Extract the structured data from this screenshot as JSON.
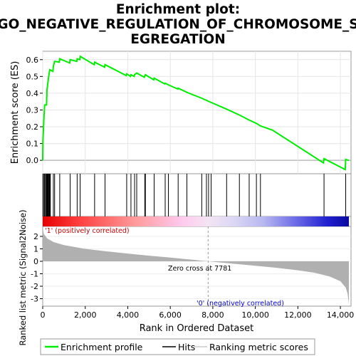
{
  "chart_data": {
    "type": "line",
    "title_lines": [
      "Enrichment plot:",
      "GO_NEGATIVE_REGULATION_OF_CHROMOSOME_S",
      "EGREGATION"
    ],
    "xlabel": "Rank in Ordered Dataset",
    "ylabel_top": "Enrichment score (ES)",
    "ylabel_bottom": "Ranked list metric (Signal2Noise)",
    "xlim": [
      0,
      14500
    ],
    "x_ticks": [
      0,
      2000,
      4000,
      6000,
      8000,
      10000,
      12000,
      14000
    ],
    "x_tick_labels": [
      "0",
      "2,000",
      "4,000",
      "6,000",
      "8,000",
      "10,000",
      "12,000",
      "14,000"
    ],
    "es_ylim": [
      -0.08,
      0.65
    ],
    "es_ticks": [
      0.0,
      0.1,
      0.2,
      0.3,
      0.4,
      0.5,
      0.6
    ],
    "es_tick_labels": [
      "0.0",
      "0.1",
      "0.2",
      "0.3",
      "0.4",
      "0.5",
      "0.6"
    ],
    "metric_ylim": [
      -3.6,
      2.8
    ],
    "metric_ticks": [
      2,
      1,
      0,
      -1,
      -2,
      -3
    ],
    "metric_tick_labels": [
      "2",
      "1",
      "0",
      "-1",
      "-2",
      "-3"
    ],
    "zero_cross": 7781,
    "zero_cross_label": "Zero cross at 7781",
    "pos_label": "'1' (positively correlated)",
    "neg_label": "'0' (negatively correlated)",
    "n_genes": 14400,
    "hits": [
      10,
      60,
      90,
      130,
      170,
      200,
      220,
      250,
      280,
      310,
      330,
      360,
      500,
      560,
      800,
      1290,
      1620,
      1760,
      2440,
      2930,
      3950,
      4150,
      4320,
      4420,
      4800,
      4830,
      5240,
      5760,
      5910,
      6370,
      6780,
      7480,
      7700,
      7800,
      7920,
      8650,
      9250,
      9710,
      10050,
      10240,
      13230,
      14250
    ],
    "es_points": [
      [
        0,
        0.0
      ],
      [
        10,
        0.12
      ],
      [
        60,
        0.26
      ],
      [
        90,
        0.33
      ],
      [
        180,
        0.33
      ],
      [
        200,
        0.42
      ],
      [
        250,
        0.47
      ],
      [
        280,
        0.5
      ],
      [
        330,
        0.54
      ],
      [
        480,
        0.53
      ],
      [
        500,
        0.56
      ],
      [
        560,
        0.59
      ],
      [
        780,
        0.585
      ],
      [
        800,
        0.605
      ],
      [
        1270,
        0.58
      ],
      [
        1290,
        0.6
      ],
      [
        1600,
        0.59
      ],
      [
        1620,
        0.605
      ],
      [
        1740,
        0.6
      ],
      [
        1760,
        0.62
      ],
      [
        2420,
        0.57
      ],
      [
        2440,
        0.585
      ],
      [
        2910,
        0.555
      ],
      [
        2930,
        0.57
      ],
      [
        3930,
        0.505
      ],
      [
        3950,
        0.515
      ],
      [
        4130,
        0.5
      ],
      [
        4150,
        0.51
      ],
      [
        4300,
        0.5
      ],
      [
        4320,
        0.51
      ],
      [
        4420,
        0.52
      ],
      [
        4780,
        0.495
      ],
      [
        4830,
        0.51
      ],
      [
        5220,
        0.48
      ],
      [
        5240,
        0.49
      ],
      [
        5740,
        0.455
      ],
      [
        5760,
        0.46
      ],
      [
        5910,
        0.45
      ],
      [
        6350,
        0.425
      ],
      [
        6370,
        0.43
      ],
      [
        6780,
        0.405
      ],
      [
        7480,
        0.37
      ],
      [
        7920,
        0.345
      ],
      [
        8650,
        0.305
      ],
      [
        9250,
        0.27
      ],
      [
        9710,
        0.24
      ],
      [
        10050,
        0.22
      ],
      [
        10240,
        0.205
      ],
      [
        10800,
        0.18
      ],
      [
        13200,
        -0.015
      ],
      [
        13230,
        0.01
      ],
      [
        14230,
        -0.055
      ],
      [
        14250,
        0.005
      ],
      [
        14400,
        0.0
      ]
    ],
    "metric_profile": [
      [
        0,
        2.75
      ],
      [
        50,
        2.2
      ],
      [
        200,
        1.85
      ],
      [
        500,
        1.55
      ],
      [
        1000,
        1.3
      ],
      [
        2000,
        1.0
      ],
      [
        3000,
        0.8
      ],
      [
        4000,
        0.62
      ],
      [
        5000,
        0.45
      ],
      [
        6000,
        0.3
      ],
      [
        7000,
        0.14
      ],
      [
        7781,
        0.0
      ],
      [
        9000,
        -0.2
      ],
      [
        10000,
        -0.36
      ],
      [
        11000,
        -0.52
      ],
      [
        12000,
        -0.72
      ],
      [
        12800,
        -0.92
      ],
      [
        13500,
        -1.22
      ],
      [
        14000,
        -1.6
      ],
      [
        14250,
        -2.1
      ],
      [
        14340,
        -2.6
      ],
      [
        14400,
        -3.45
      ]
    ],
    "legend": {
      "placement": "bottom",
      "entries": [
        "Enrichment profile",
        "Hits",
        "Ranking metric scores"
      ]
    },
    "colors": {
      "es_line": "#00ee00",
      "hits": "#000000",
      "metric_fill": "#b0b0b0",
      "pos_text": "#cc0000",
      "neg_text": "#0000cc",
      "zero_line": "#999999"
    }
  }
}
